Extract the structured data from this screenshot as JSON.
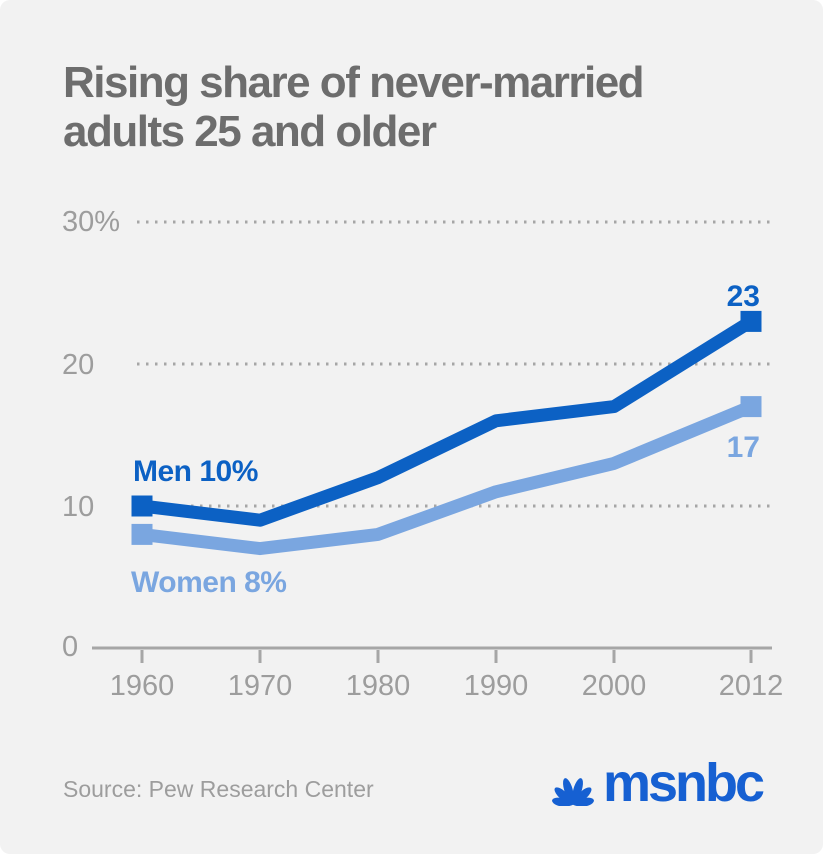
{
  "title": {
    "line1": "Rising share of never-married",
    "line2": "adults 25 and older"
  },
  "chart_data": {
    "type": "line",
    "title": "Rising share of never-married adults 25 and older",
    "x": [
      1960,
      1970,
      1980,
      1990,
      2000,
      2012
    ],
    "x_tick_labels": [
      "1960",
      "1970",
      "1980",
      "1990",
      "2000",
      "2012"
    ],
    "y_axis": {
      "tick_labels": [
        "30%",
        "20",
        "10",
        "0"
      ],
      "gridline_values": [
        30,
        20,
        10
      ],
      "ylim": [
        0,
        32
      ],
      "unit": "percent"
    },
    "grid": "dotted-horizontal",
    "grid_color": "#a6a6a6",
    "axis_color": "#a6a6a6",
    "legend_position": "inline-labels",
    "series": [
      {
        "name": "Men",
        "color": "#0c61c4",
        "values": [
          10,
          9,
          12,
          16,
          17,
          23
        ],
        "start_label": "Men 10%",
        "end_label": "23"
      },
      {
        "name": "Women",
        "color": "#7aa6e0",
        "values": [
          8,
          7,
          8,
          11,
          13,
          17
        ],
        "start_label": "Women 8%",
        "end_label": "17"
      }
    ]
  },
  "footer": {
    "source": "Source: Pew Research Center",
    "logo_text": "msnbc",
    "logo_color": "#1660d2"
  }
}
